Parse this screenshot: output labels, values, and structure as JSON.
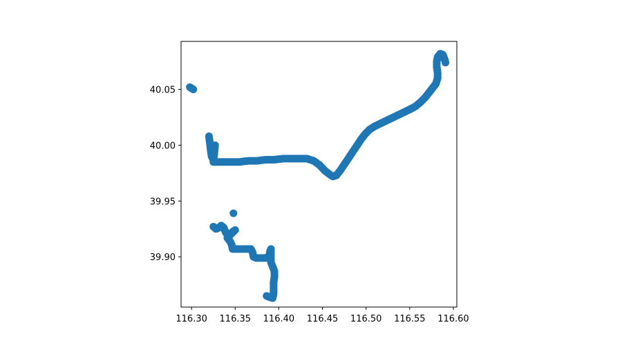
{
  "chart_data": {
    "type": "scatter",
    "title": "",
    "xlabel": "",
    "ylabel": "",
    "xlim": [
      116.288,
      116.604
    ],
    "ylim": [
      39.855,
      40.093
    ],
    "xticks": [
      "116.30",
      "116.35",
      "116.40",
      "116.45",
      "116.50",
      "116.55",
      "116.60"
    ],
    "yticks": [
      "39.90",
      "39.95",
      "40.00",
      "40.05"
    ],
    "grid": false,
    "legend": "none",
    "series": [
      {
        "color": "#1f77b4",
        "segments": [
          [
            [
              116.298,
              40.052
            ],
            [
              116.3,
              40.051
            ],
            [
              116.302,
              40.05
            ]
          ],
          [
            [
              116.32,
              40.008
            ],
            [
              116.321,
              40.002
            ],
            [
              116.322,
              39.995
            ],
            [
              116.323,
              39.99
            ],
            [
              116.325,
              39.987
            ],
            [
              116.326,
              39.994
            ],
            [
              116.327,
              40.0
            ],
            [
              116.325,
              39.985
            ],
            [
              116.335,
              39.985
            ],
            [
              116.345,
              39.985
            ],
            [
              116.355,
              39.985
            ],
            [
              116.365,
              39.986
            ],
            [
              116.375,
              39.986
            ],
            [
              116.385,
              39.987
            ],
            [
              116.395,
              39.987
            ],
            [
              116.405,
              39.988
            ],
            [
              116.415,
              39.988
            ],
            [
              116.425,
              39.988
            ],
            [
              116.432,
              39.988
            ],
            [
              116.44,
              39.986
            ],
            [
              116.447,
              39.982
            ],
            [
              116.453,
              39.977
            ],
            [
              116.458,
              39.974
            ],
            [
              116.462,
              39.972
            ],
            [
              116.466,
              39.973
            ],
            [
              116.471,
              39.978
            ],
            [
              116.477,
              39.985
            ],
            [
              116.483,
              39.992
            ],
            [
              116.489,
              39.999
            ],
            [
              116.494,
              40.005
            ],
            [
              116.499,
              40.01
            ],
            [
              116.504,
              40.014
            ],
            [
              116.51,
              40.017
            ],
            [
              116.518,
              40.02
            ],
            [
              116.526,
              40.023
            ],
            [
              116.534,
              40.026
            ],
            [
              116.542,
              40.029
            ],
            [
              116.55,
              40.032
            ],
            [
              116.557,
              40.035
            ],
            [
              116.563,
              40.039
            ],
            [
              116.568,
              40.043
            ],
            [
              116.572,
              40.047
            ],
            [
              116.576,
              40.051
            ],
            [
              116.58,
              40.055
            ],
            [
              116.582,
              40.06
            ],
            [
              116.582,
              40.065
            ],
            [
              116.581,
              40.07
            ],
            [
              116.581,
              40.075
            ],
            [
              116.582,
              40.079
            ],
            [
              116.585,
              40.082
            ],
            [
              116.588,
              40.081
            ],
            [
              116.59,
              40.077
            ],
            [
              116.591,
              40.074
            ]
          ],
          [
            [
              116.348,
              39.939
            ]
          ],
          [
            [
              116.325,
              39.927
            ],
            [
              116.328,
              39.925
            ],
            [
              116.331,
              39.926
            ],
            [
              116.334,
              39.928
            ],
            [
              116.337,
              39.926
            ],
            [
              116.339,
              39.922
            ],
            [
              116.342,
              39.919
            ],
            [
              116.345,
              39.921
            ],
            [
              116.348,
              39.923
            ],
            [
              116.35,
              39.924
            ],
            [
              116.341,
              39.917
            ],
            [
              116.344,
              39.914
            ],
            [
              116.346,
              39.911
            ],
            [
              116.347,
              39.907
            ],
            [
              116.352,
              39.907
            ],
            [
              116.358,
              39.907
            ],
            [
              116.364,
              39.907
            ],
            [
              116.368,
              39.907
            ],
            [
              116.37,
              39.904
            ],
            [
              116.371,
              39.9
            ],
            [
              116.374,
              39.899
            ],
            [
              116.378,
              39.899
            ],
            [
              116.382,
              39.899
            ],
            [
              116.386,
              39.899
            ],
            [
              116.389,
              39.901
            ],
            [
              116.39,
              39.905
            ],
            [
              116.391,
              39.907
            ],
            [
              116.391,
              39.9
            ],
            [
              116.391,
              39.895
            ],
            [
              116.393,
              39.891
            ],
            [
              116.395,
              39.887
            ],
            [
              116.395,
              39.882
            ],
            [
              116.394,
              39.877
            ],
            [
              116.394,
              39.872
            ],
            [
              116.394,
              39.867
            ],
            [
              116.393,
              39.863
            ],
            [
              116.389,
              39.864
            ],
            [
              116.386,
              39.865
            ]
          ]
        ]
      }
    ]
  }
}
